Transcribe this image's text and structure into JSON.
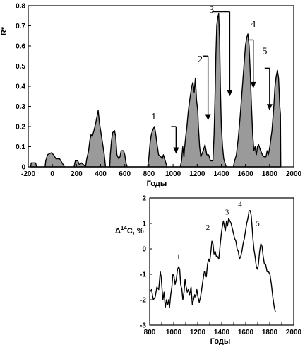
{
  "chart_data": [
    {
      "type": "area",
      "ylabel": "R*",
      "xlabel": "Годы",
      "xlim": [
        -200,
        2000
      ],
      "ylim": [
        0,
        0.8
      ],
      "xticks": [
        "-200",
        "0",
        "200",
        "400",
        "600",
        "800",
        "1000",
        "1200",
        "1400",
        "1600",
        "1800",
        "2000"
      ],
      "yticks": [
        "0",
        "0.1",
        "0.2",
        "0.3",
        "0.4",
        "0.5",
        "0.6",
        "0.7",
        "0.8"
      ],
      "grid": false,
      "series": [
        {
          "values": [
            [
              -180,
              0.0
            ],
            [
              -175,
              0.02
            ],
            [
              -140,
              0.02
            ],
            [
              -130,
              0.0
            ],
            [
              -60,
              0.0
            ],
            [
              -55,
              0.03
            ],
            [
              -40,
              0.06
            ],
            [
              -10,
              0.07
            ],
            [
              10,
              0.06
            ],
            [
              30,
              0.04
            ],
            [
              60,
              0.04
            ],
            [
              80,
              0.02
            ],
            [
              100,
              0.0
            ],
            [
              180,
              0.0
            ],
            [
              190,
              0.03
            ],
            [
              210,
              0.03
            ],
            [
              225,
              0.01
            ],
            [
              240,
              0.02
            ],
            [
              260,
              0.01
            ],
            [
              275,
              0.0
            ],
            [
              285,
              0.04
            ],
            [
              300,
              0.08
            ],
            [
              310,
              0.13
            ],
            [
              320,
              0.16
            ],
            [
              330,
              0.15
            ],
            [
              345,
              0.18
            ],
            [
              360,
              0.22
            ],
            [
              370,
              0.25
            ],
            [
              380,
              0.28
            ],
            [
              390,
              0.22
            ],
            [
              400,
              0.18
            ],
            [
              410,
              0.14
            ],
            [
              420,
              0.1
            ],
            [
              430,
              0.06
            ],
            [
              440,
              0.0
            ],
            [
              475,
              0.0
            ],
            [
              480,
              0.06
            ],
            [
              490,
              0.13
            ],
            [
              500,
              0.17
            ],
            [
              515,
              0.18
            ],
            [
              525,
              0.15
            ],
            [
              535,
              0.06
            ],
            [
              550,
              0.04
            ],
            [
              560,
              0.05
            ],
            [
              570,
              0.08
            ],
            [
              590,
              0.08
            ],
            [
              600,
              0.06
            ],
            [
              610,
              0.02
            ],
            [
              620,
              0.0
            ],
            [
              790,
              0.0
            ],
            [
              800,
              0.05
            ],
            [
              810,
              0.12
            ],
            [
              820,
              0.16
            ],
            [
              830,
              0.18
            ],
            [
              845,
              0.2
            ],
            [
              855,
              0.17
            ],
            [
              870,
              0.1
            ],
            [
              880,
              0.06
            ],
            [
              900,
              0.05
            ],
            [
              910,
              0.04
            ],
            [
              920,
              0.06
            ],
            [
              935,
              0.03
            ],
            [
              950,
              0.0
            ],
            [
              1060,
              0.0
            ],
            [
              1070,
              0.03
            ],
            [
              1080,
              0.1
            ],
            [
              1090,
              0.05
            ],
            [
              1095,
              0.09
            ],
            [
              1105,
              0.15
            ],
            [
              1115,
              0.2
            ],
            [
              1125,
              0.27
            ],
            [
              1135,
              0.32
            ],
            [
              1145,
              0.36
            ],
            [
              1155,
              0.4
            ],
            [
              1165,
              0.42
            ],
            [
              1175,
              0.37
            ],
            [
              1185,
              0.44
            ],
            [
              1195,
              0.33
            ],
            [
              1205,
              0.28
            ],
            [
              1210,
              0.2
            ],
            [
              1220,
              0.1
            ],
            [
              1230,
              0.05
            ],
            [
              1250,
              0.08
            ],
            [
              1265,
              0.11
            ],
            [
              1280,
              0.06
            ],
            [
              1295,
              0.06
            ],
            [
              1310,
              0.03
            ],
            [
              1330,
              0.03
            ],
            [
              1340,
              0.16
            ],
            [
              1348,
              0.36
            ],
            [
              1355,
              0.56
            ],
            [
              1362,
              0.7
            ],
            [
              1370,
              0.74
            ],
            [
              1378,
              0.76
            ],
            [
              1386,
              0.63
            ],
            [
              1392,
              0.4
            ],
            [
              1400,
              0.2
            ],
            [
              1410,
              0.1
            ],
            [
              1420,
              0.04
            ],
            [
              1430,
              0.02
            ],
            [
              1440,
              0.0
            ],
            [
              1500,
              0.0
            ],
            [
              1510,
              0.03
            ],
            [
              1525,
              0.06
            ],
            [
              1540,
              0.14
            ],
            [
              1555,
              0.24
            ],
            [
              1570,
              0.36
            ],
            [
              1580,
              0.44
            ],
            [
              1590,
              0.52
            ],
            [
              1600,
              0.6
            ],
            [
              1610,
              0.64
            ],
            [
              1620,
              0.66
            ],
            [
              1630,
              0.6
            ],
            [
              1640,
              0.46
            ],
            [
              1650,
              0.3
            ],
            [
              1660,
              0.16
            ],
            [
              1670,
              0.08
            ],
            [
              1680,
              0.1
            ],
            [
              1690,
              0.06
            ],
            [
              1700,
              0.1
            ],
            [
              1710,
              0.11
            ],
            [
              1720,
              0.09
            ],
            [
              1740,
              0.06
            ],
            [
              1755,
              0.05
            ],
            [
              1770,
              0.05
            ],
            [
              1780,
              0.08
            ],
            [
              1790,
              0.06
            ],
            [
              1800,
              0.09
            ],
            [
              1820,
              0.18
            ],
            [
              1835,
              0.3
            ],
            [
              1845,
              0.4
            ],
            [
              1855,
              0.45
            ],
            [
              1865,
              0.48
            ],
            [
              1875,
              0.44
            ],
            [
              1885,
              0.3
            ],
            [
              1890,
              0.26
            ],
            [
              1893,
              0.0
            ]
          ]
        }
      ],
      "annotations": [
        {
          "label": "1",
          "x": 840,
          "y": 0.235
        },
        {
          "label": "2",
          "x": 1225,
          "y": 0.52
        },
        {
          "label": "3",
          "x": 1320,
          "y": 0.765
        },
        {
          "label": "4",
          "x": 1665,
          "y": 0.695
        },
        {
          "label": "5",
          "x": 1760,
          "y": 0.56
        }
      ],
      "bracket_arrows": [
        {
          "label": "1",
          "x_start": 1025,
          "x_end": 1025,
          "y_top": 0.2,
          "y_tip": 0.065
        },
        {
          "label": "2",
          "x_start": 1290,
          "x_end": 1290,
          "y_top": 0.55,
          "y_tip": 0.23
        },
        {
          "label": "3",
          "x_start": 1370,
          "x_end": 1470,
          "y_top": 0.77,
          "y_tip": 0.35
        },
        {
          "label": "4",
          "x_start": 1665,
          "x_end": 1665,
          "y_top": 0.63,
          "y_tip": 0.39
        },
        {
          "label": "5",
          "x_start": 1800,
          "x_end": 1800,
          "y_top": 0.49,
          "y_tip": 0.28
        }
      ]
    },
    {
      "type": "line",
      "ylabel": "Δ14C, %",
      "xlabel": "Годы",
      "xlim": [
        800,
        2000
      ],
      "ylim": [
        -3,
        2
      ],
      "xticks": [
        "800",
        "900",
        "1000",
        "1100",
        "1200",
        "1300",
        "1400",
        "1500",
        "1600",
        "1700",
        "1800",
        "1900",
        "2000"
      ],
      "yticks": [
        "-3",
        "-2",
        "-1",
        "0",
        "1",
        "2"
      ],
      "grid": false,
      "series": [
        {
          "values": [
            [
              800,
              -1.7
            ],
            [
              815,
              -1.6
            ],
            [
              830,
              -2.0
            ],
            [
              845,
              -1.9
            ],
            [
              860,
              -1.5
            ],
            [
              875,
              -1.6
            ],
            [
              888,
              -0.9
            ],
            [
              895,
              -1.1
            ],
            [
              902,
              -1.5
            ],
            [
              910,
              -2.0
            ],
            [
              920,
              -1.7
            ],
            [
              930,
              -2.3
            ],
            [
              940,
              -2.0
            ],
            [
              950,
              -2.2
            ],
            [
              958,
              -2.0
            ],
            [
              965,
              -2.3
            ],
            [
              975,
              -1.8
            ],
            [
              985,
              -1.5
            ],
            [
              993,
              -1.0
            ],
            [
              1003,
              -1.1
            ],
            [
              1012,
              -1.4
            ],
            [
              1022,
              -1.2
            ],
            [
              1032,
              -0.8
            ],
            [
              1042,
              -0.7
            ],
            [
              1050,
              -0.8
            ],
            [
              1058,
              -1.4
            ],
            [
              1068,
              -1.6
            ],
            [
              1076,
              -2.0
            ],
            [
              1086,
              -1.7
            ],
            [
              1095,
              -1.2
            ],
            [
              1104,
              -1.5
            ],
            [
              1113,
              -1.7
            ],
            [
              1122,
              -1.6
            ],
            [
              1133,
              -1.8
            ],
            [
              1145,
              -1.5
            ],
            [
              1155,
              -2.2
            ],
            [
              1165,
              -2.0
            ],
            [
              1175,
              -1.8
            ],
            [
              1183,
              -1.9
            ],
            [
              1193,
              -1.6
            ],
            [
              1203,
              -1.9
            ],
            [
              1213,
              -2.1
            ],
            [
              1223,
              -1.9
            ],
            [
              1233,
              -1.6
            ],
            [
              1245,
              -1.2
            ],
            [
              1255,
              -0.9
            ],
            [
              1263,
              -0.9
            ],
            [
              1272,
              -1.1
            ],
            [
              1282,
              -0.6
            ],
            [
              1292,
              -0.4
            ],
            [
              1300,
              -0.5
            ],
            [
              1310,
              -0.1
            ],
            [
              1318,
              0.3
            ],
            [
              1327,
              0.2
            ],
            [
              1336,
              -0.2
            ],
            [
              1346,
              -0.1
            ],
            [
              1356,
              -0.3
            ],
            [
              1366,
              -0.3
            ],
            [
              1376,
              -0.4
            ],
            [
              1388,
              0.2
            ],
            [
              1397,
              0.6
            ],
            [
              1406,
              0.9
            ],
            [
              1414,
              1.1
            ],
            [
              1422,
              0.9
            ],
            [
              1430,
              0.7
            ],
            [
              1440,
              1.1
            ],
            [
              1448,
              0.9
            ],
            [
              1458,
              1.2
            ],
            [
              1468,
              1.1
            ],
            [
              1478,
              1.0
            ],
            [
              1488,
              0.8
            ],
            [
              1498,
              0.6
            ],
            [
              1508,
              0.4
            ],
            [
              1518,
              0.3
            ],
            [
              1528,
              0.0
            ],
            [
              1538,
              -0.1
            ],
            [
              1548,
              -0.4
            ],
            [
              1558,
              -0.3
            ],
            [
              1568,
              -0.1
            ],
            [
              1578,
              0.2
            ],
            [
              1588,
              0.4
            ],
            [
              1598,
              0.7
            ],
            [
              1608,
              1.0
            ],
            [
              1618,
              1.2
            ],
            [
              1628,
              1.5
            ],
            [
              1638,
              1.5
            ],
            [
              1646,
              1.3
            ],
            [
              1654,
              0.8
            ],
            [
              1660,
              0.4
            ],
            [
              1668,
              0.0
            ],
            [
              1678,
              -0.3
            ],
            [
              1688,
              -0.7
            ],
            [
              1698,
              -0.8
            ],
            [
              1706,
              -0.6
            ],
            [
              1716,
              -0.1
            ],
            [
              1726,
              0.2
            ],
            [
              1736,
              0.1
            ],
            [
              1746,
              -0.3
            ],
            [
              1756,
              -0.6
            ],
            [
              1766,
              -0.6
            ],
            [
              1778,
              -0.9
            ],
            [
              1790,
              -0.9
            ],
            [
              1802,
              -1.0
            ],
            [
              1814,
              -1.4
            ],
            [
              1826,
              -1.9
            ],
            [
              1838,
              -2.3
            ],
            [
              1848,
              -2.5
            ]
          ]
        }
      ],
      "annotations": [
        {
          "label": "1",
          "x": 1040,
          "y": -0.4
        },
        {
          "label": "2",
          "x": 1285,
          "y": 0.75
        },
        {
          "label": "3",
          "x": 1445,
          "y": 1.35
        },
        {
          "label": "4",
          "x": 1553,
          "y": 1.65
        },
        {
          "label": "5",
          "x": 1700,
          "y": 0.9
        }
      ]
    }
  ]
}
